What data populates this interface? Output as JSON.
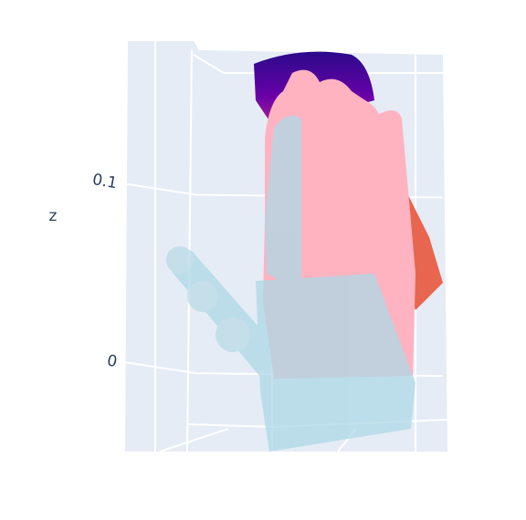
{
  "chart_data": {
    "type": "scatter3d",
    "z_label": "z",
    "zlim": [
      -0.05,
      0.18
    ],
    "zticks": [
      0,
      0.1
    ],
    "grid": true
  }
}
